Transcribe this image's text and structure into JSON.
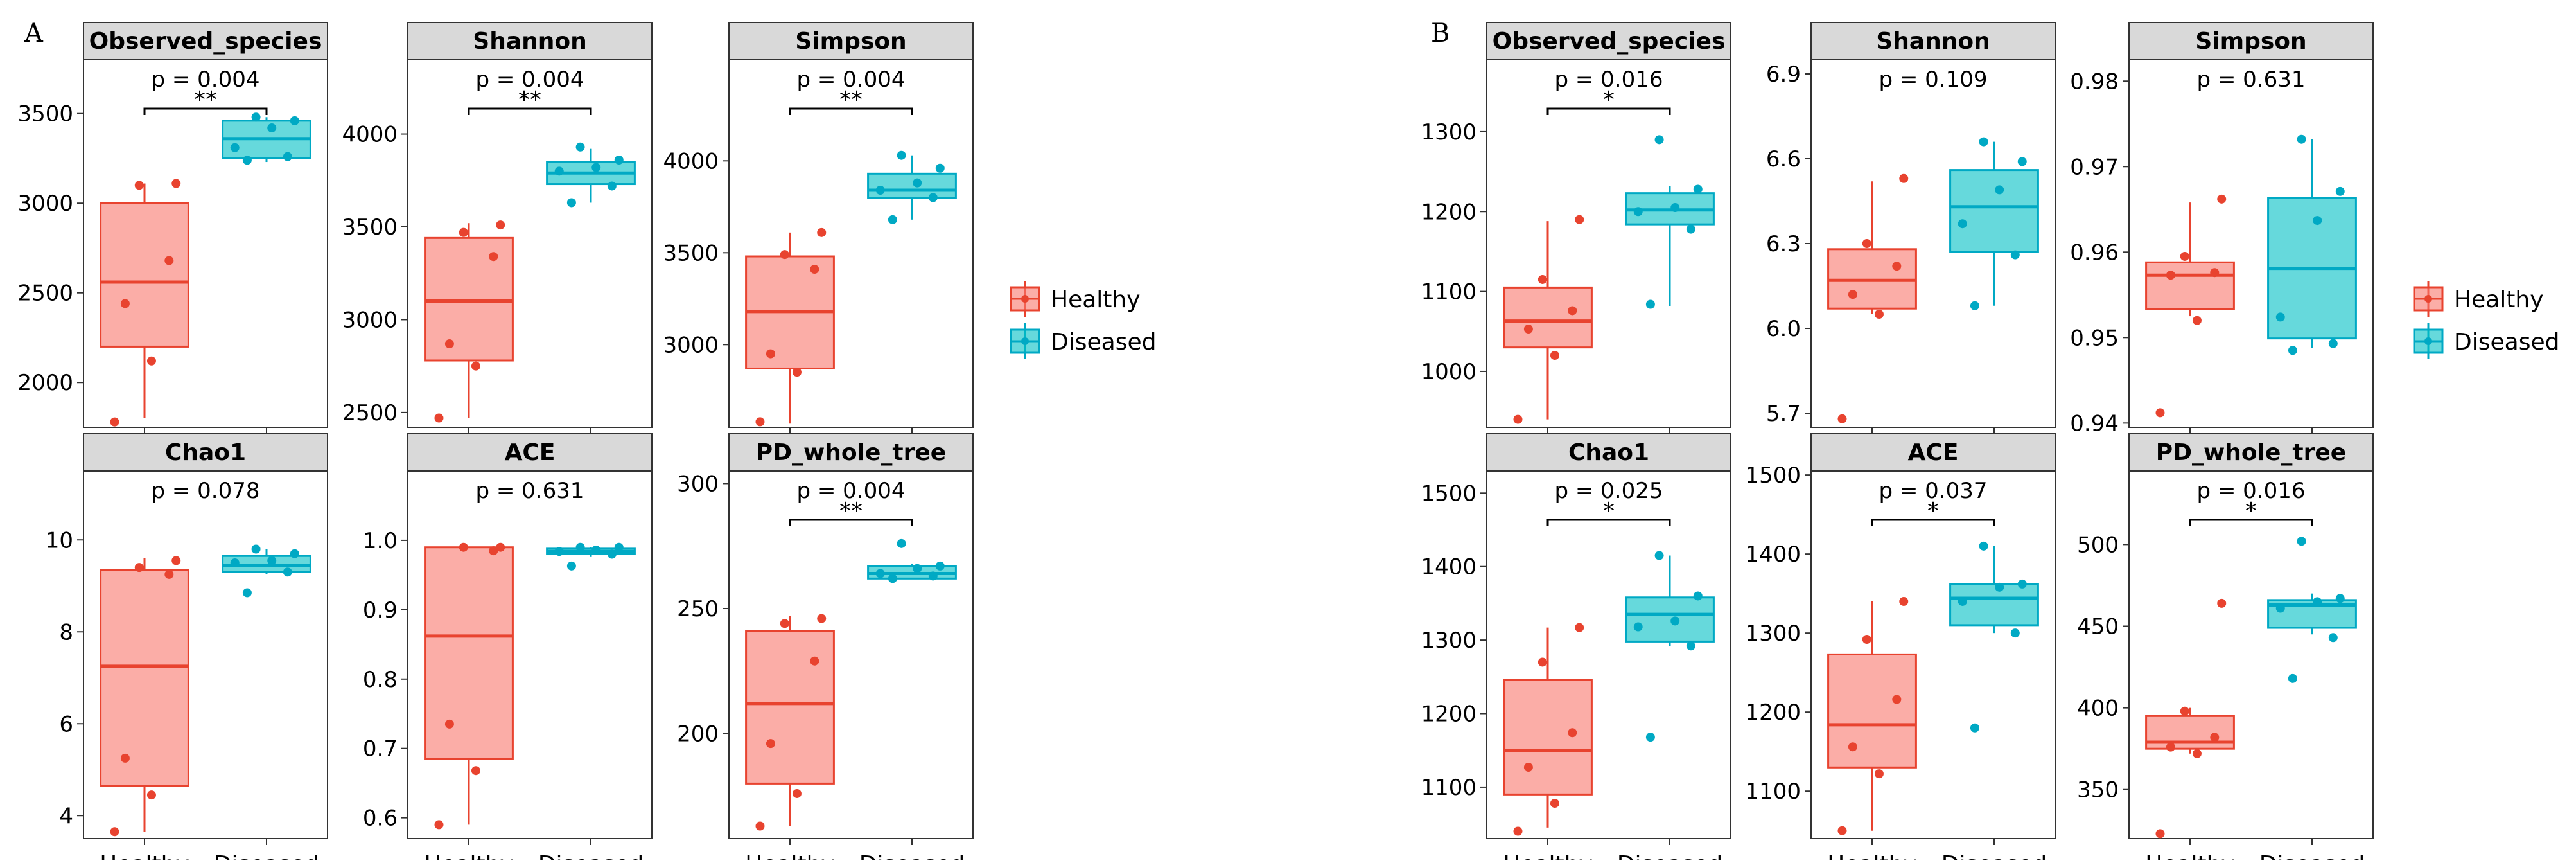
{
  "colors": {
    "healthy": "#f8766d",
    "healthy_line": "#e8432f",
    "diseased": "#00bfc4",
    "diseased_line": "#00a9c4"
  },
  "legend": {
    "items": [
      "Healthy",
      "Diseased"
    ]
  },
  "chart_data": [
    {
      "type": "boxplot",
      "panel_label": "A",
      "groups": [
        "Healthy",
        "Diseased"
      ],
      "facets": [
        {
          "title": "Observed_species",
          "p_label": "p = 0.004",
          "signif": "**",
          "ylim": [
            1750,
            3800
          ],
          "yticks": [
            {
              "v": 2000,
              "label": "2000"
            },
            {
              "v": 2500,
              "label": "2500"
            },
            {
              "v": 3000,
              "label": "3000"
            },
            {
              "v": 3500,
              "label": "3500"
            }
          ],
          "stats": {
            "Healthy": {
              "q1": 2200,
              "median": 2560,
              "q3": 3000,
              "low": 1800,
              "high": 3110
            },
            "Diseased": {
              "q1": 3250,
              "median": 3360,
              "q3": 3460,
              "low": 3230,
              "high": 3480
            }
          },
          "points": {
            "Healthy": [
              1780,
              2120,
              2440,
              2680,
              3100,
              3110
            ],
            "Diseased": [
              3240,
              3260,
              3310,
              3420,
              3460,
              3480
            ]
          }
        },
        {
          "title": "Shannon",
          "p_label": "p = 0.004",
          "signif": "**",
          "ylim": [
            2420,
            4400
          ],
          "yticks": [
            {
              "v": 2500,
              "label": "2500"
            },
            {
              "v": 3000,
              "label": "3000"
            },
            {
              "v": 3500,
              "label": "3500"
            },
            {
              "v": 4000,
              "label": "4000"
            }
          ],
          "stats": {
            "Healthy": {
              "q1": 2780,
              "median": 3100,
              "q3": 3440,
              "low": 2470,
              "high": 3520
            },
            "Diseased": {
              "q1": 3730,
              "median": 3790,
              "q3": 3850,
              "low": 3630,
              "high": 3920
            }
          },
          "points": {
            "Healthy": [
              2470,
              2750,
              2870,
              3340,
              3470,
              3510
            ],
            "Diseased": [
              3630,
              3720,
              3800,
              3820,
              3860,
              3930
            ]
          }
        },
        {
          "title": "Simpson",
          "p_label": "p = 0.004",
          "signif": "**",
          "ylim": [
            2550,
            4550
          ],
          "yticks": [
            {
              "v": 3000,
              "label": "3000"
            },
            {
              "v": 3500,
              "label": "3500"
            },
            {
              "v": 4000,
              "label": "4000"
            }
          ],
          "stats": {
            "Healthy": {
              "q1": 2870,
              "median": 3180,
              "q3": 3480,
              "low": 2570,
              "high": 3610
            },
            "Diseased": {
              "q1": 3800,
              "median": 3840,
              "q3": 3930,
              "low": 3680,
              "high": 4030
            }
          },
          "points": {
            "Healthy": [
              2580,
              2850,
              2950,
              3410,
              3490,
              3610
            ],
            "Diseased": [
              3680,
              3800,
              3840,
              3880,
              3960,
              4030
            ]
          }
        },
        {
          "title": "Chao1",
          "p_label": "p = 0.078",
          "signif": "",
          "ylim": [
            3.5,
            11.5
          ],
          "yticks": [
            {
              "v": 4,
              "label": "4"
            },
            {
              "v": 6,
              "label": "6"
            },
            {
              "v": 8,
              "label": "8"
            },
            {
              "v": 10,
              "label": "10"
            }
          ],
          "stats": {
            "Healthy": {
              "q1": 4.65,
              "median": 7.25,
              "q3": 9.35,
              "low": 3.65,
              "high": 9.6
            },
            "Diseased": {
              "q1": 9.3,
              "median": 9.45,
              "q3": 9.65,
              "low": 9.25,
              "high": 9.8
            }
          },
          "points": {
            "Healthy": [
              3.65,
              4.45,
              5.25,
              9.25,
              9.4,
              9.55
            ],
            "Diseased": [
              8.85,
              9.3,
              9.5,
              9.55,
              9.7,
              9.8
            ]
          }
        },
        {
          "title": "ACE",
          "p_label": "p = 0.631",
          "signif": "",
          "ylim": [
            0.57,
            1.1
          ],
          "yticks": [
            {
              "v": 0.6,
              "label": "0.6"
            },
            {
              "v": 0.7,
              "label": "0.7"
            },
            {
              "v": 0.8,
              "label": "0.8"
            },
            {
              "v": 0.9,
              "label": "0.9"
            },
            {
              "v": 1.0,
              "label": "1.0"
            }
          ],
          "stats": {
            "Healthy": {
              "q1": 0.685,
              "median": 0.862,
              "q3": 0.99,
              "low": 0.59,
              "high": 0.99
            },
            "Diseased": {
              "q1": 0.98,
              "median": 0.984,
              "q3": 0.988,
              "low": 0.976,
              "high": 0.99
            }
          },
          "points": {
            "Healthy": [
              0.59,
              0.668,
              0.735,
              0.985,
              0.99,
              0.99
            ],
            "Diseased": [
              0.963,
              0.98,
              0.984,
              0.986,
              0.99,
              0.99
            ]
          }
        },
        {
          "title": "PD_whole_tree",
          "p_label": "p = 0.004",
          "signif": "**",
          "ylim": [
            158,
            305
          ],
          "yticks": [
            {
              "v": 200,
              "label": "200"
            },
            {
              "v": 250,
              "label": "250"
            },
            {
              "v": 300,
              "label": "300"
            }
          ],
          "stats": {
            "Healthy": {
              "q1": 180,
              "median": 212,
              "q3": 241,
              "low": 163,
              "high": 247
            },
            "Diseased": {
              "q1": 262,
              "median": 264,
              "q3": 267,
              "low": 262,
              "high": 268
            }
          },
          "points": {
            "Healthy": [
              163,
              176,
              196,
              229,
              244,
              246
            ],
            "Diseased": [
              262,
              263,
              264,
              266,
              267,
              276
            ]
          }
        }
      ]
    },
    {
      "type": "boxplot",
      "panel_label": "B",
      "groups": [
        "Healthy",
        "Diseased"
      ],
      "facets": [
        {
          "title": "Observed_species",
          "p_label": "p = 0.016",
          "signif": "*",
          "ylim": [
            930,
            1390
          ],
          "yticks": [
            {
              "v": 1000,
              "label": "1000"
            },
            {
              "v": 1100,
              "label": "1100"
            },
            {
              "v": 1200,
              "label": "1200"
            },
            {
              "v": 1300,
              "label": "1300"
            }
          ],
          "stats": {
            "Healthy": {
              "q1": 1030,
              "median": 1063,
              "q3": 1105,
              "low": 940,
              "high": 1188
            },
            "Diseased": {
              "q1": 1184,
              "median": 1202,
              "q3": 1223,
              "low": 1082,
              "high": 1232
            }
          },
          "points": {
            "Healthy": [
              940,
              1020,
              1053,
              1076,
              1115,
              1190
            ],
            "Diseased": [
              1084,
              1178,
              1200,
              1205,
              1228,
              1290
            ]
          }
        },
        {
          "title": "Shannon",
          "p_label": "p = 0.109",
          "signif": "",
          "ylim": [
            5.65,
            6.95
          ],
          "yticks": [
            {
              "v": 5.7,
              "label": "5.7"
            },
            {
              "v": 6.0,
              "label": "6.0"
            },
            {
              "v": 6.3,
              "label": "6.3"
            },
            {
              "v": 6.6,
              "label": "6.6"
            },
            {
              "v": 6.9,
              "label": "6.9"
            }
          ],
          "stats": {
            "Healthy": {
              "q1": 6.07,
              "median": 6.17,
              "q3": 6.28,
              "low": 6.05,
              "high": 6.52
            },
            "Diseased": {
              "q1": 6.27,
              "median": 6.43,
              "q3": 6.56,
              "low": 6.08,
              "high": 6.66
            }
          },
          "points": {
            "Healthy": [
              5.68,
              6.05,
              6.12,
              6.22,
              6.3,
              6.53
            ],
            "Diseased": [
              6.08,
              6.26,
              6.37,
              6.49,
              6.59,
              6.66
            ]
          }
        },
        {
          "title": "Simpson",
          "p_label": "p = 0.631",
          "signif": "",
          "ylim": [
            0.9395,
            0.9825
          ],
          "yticks": [
            {
              "v": 0.94,
              "label": "0.94"
            },
            {
              "v": 0.95,
              "label": "0.95"
            },
            {
              "v": 0.96,
              "label": "0.96"
            },
            {
              "v": 0.97,
              "label": "0.97"
            },
            {
              "v": 0.98,
              "label": "0.98"
            }
          ],
          "stats": {
            "Healthy": {
              "q1": 0.9533,
              "median": 0.9573,
              "q3": 0.9588,
              "low": 0.9525,
              "high": 0.9658
            },
            "Diseased": {
              "q1": 0.9499,
              "median": 0.9581,
              "q3": 0.9663,
              "low": 0.9488,
              "high": 0.9732
            }
          },
          "points": {
            "Healthy": [
              0.9412,
              0.952,
              0.9573,
              0.9576,
              0.9595,
              0.9662
            ],
            "Diseased": [
              0.9485,
              0.9493,
              0.9524,
              0.9637,
              0.9671,
              0.9732
            ]
          }
        },
        {
          "title": "Chao1",
          "p_label": "p = 0.025",
          "signif": "*",
          "ylim": [
            1030,
            1530
          ],
          "yticks": [
            {
              "v": 1100,
              "label": "1100"
            },
            {
              "v": 1200,
              "label": "1200"
            },
            {
              "v": 1300,
              "label": "1300"
            },
            {
              "v": 1400,
              "label": "1400"
            },
            {
              "v": 1500,
              "label": "1500"
            }
          ],
          "stats": {
            "Healthy": {
              "q1": 1090,
              "median": 1150,
              "q3": 1246,
              "low": 1045,
              "high": 1317
            },
            "Diseased": {
              "q1": 1298,
              "median": 1335,
              "q3": 1358,
              "low": 1292,
              "high": 1415
            }
          },
          "points": {
            "Healthy": [
              1040,
              1078,
              1127,
              1174,
              1270,
              1317
            ],
            "Diseased": [
              1168,
              1292,
              1318,
              1326,
              1360,
              1415
            ]
          }
        },
        {
          "title": "ACE",
          "p_label": "p = 0.037",
          "signif": "*",
          "ylim": [
            1040,
            1505
          ],
          "yticks": [
            {
              "v": 1100,
              "label": "1100"
            },
            {
              "v": 1200,
              "label": "1200"
            },
            {
              "v": 1300,
              "label": "1300"
            },
            {
              "v": 1400,
              "label": "1400"
            },
            {
              "v": 1500,
              "label": "1500"
            }
          ],
          "stats": {
            "Healthy": {
              "q1": 1130,
              "median": 1184,
              "q3": 1273,
              "low": 1050,
              "high": 1340
            },
            "Diseased": {
              "q1": 1310,
              "median": 1344,
              "q3": 1362,
              "low": 1300,
              "high": 1410
            }
          },
          "points": {
            "Healthy": [
              1050,
              1122,
              1156,
              1216,
              1292,
              1340
            ],
            "Diseased": [
              1180,
              1300,
              1340,
              1358,
              1362,
              1410
            ]
          }
        },
        {
          "title": "PD_whole_tree",
          "p_label": "p = 0.016",
          "signif": "*",
          "ylim": [
            320,
            545
          ],
          "yticks": [
            {
              "v": 350,
              "label": "350"
            },
            {
              "v": 400,
              "label": "400"
            },
            {
              "v": 450,
              "label": "450"
            },
            {
              "v": 500,
              "label": "500"
            }
          ],
          "stats": {
            "Healthy": {
              "q1": 375,
              "median": 379,
              "q3": 395,
              "low": 372,
              "high": 400
            },
            "Diseased": {
              "q1": 449,
              "median": 463,
              "q3": 466,
              "low": 445,
              "high": 470
            }
          },
          "points": {
            "Healthy": [
              323,
              372,
              376,
              382,
              398,
              464
            ],
            "Diseased": [
              418,
              443,
              461,
              465,
              467,
              502
            ]
          }
        }
      ]
    }
  ]
}
